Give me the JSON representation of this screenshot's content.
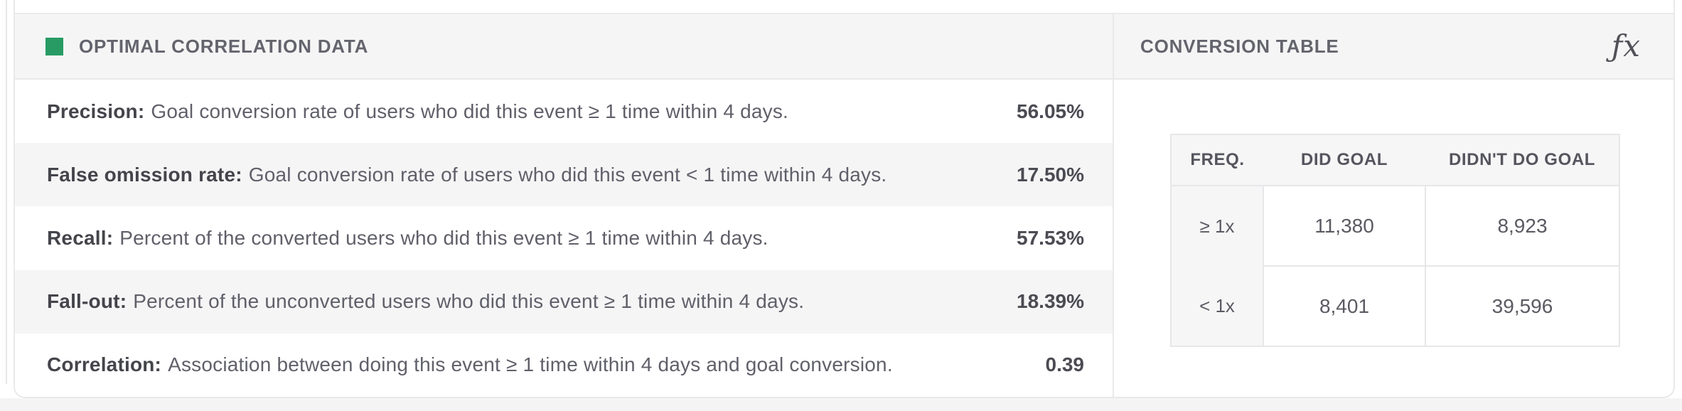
{
  "left_panel": {
    "title": "OPTIMAL CORRELATION DATA",
    "legend_color": "#279b63",
    "rows": [
      {
        "label": "Precision:",
        "description": "Goal conversion rate of users who did this event ≥ 1 time within 4 days.",
        "value": "56.05%"
      },
      {
        "label": "False omission rate:",
        "description": "Goal conversion rate of users who did this event < 1 time within 4 days.",
        "value": "17.50%"
      },
      {
        "label": "Recall:",
        "description": "Percent of the converted users who did this event ≥ 1 time within 4 days.",
        "value": "57.53%"
      },
      {
        "label": "Fall-out:",
        "description": "Percent of the unconverted users who did this event ≥ 1 time within 4 days.",
        "value": "18.39%"
      },
      {
        "label": "Correlation:",
        "description": "Association between doing this event ≥ 1 time within 4 days and goal conversion.",
        "value": "0.39"
      }
    ]
  },
  "right_panel": {
    "title": "CONVERSION TABLE",
    "fx_icon_glyph": "ƒx",
    "table": {
      "headers": [
        "FREQ.",
        "DID GOAL",
        "DIDN'T DO GOAL"
      ],
      "rows": [
        [
          "≥ 1x",
          "11,380",
          "8,923"
        ],
        [
          "< 1x",
          "8,401",
          "39,596"
        ]
      ]
    }
  },
  "colors": {
    "accent_green": "#279b63",
    "band_background": "#f5f5f6",
    "page_band": "#f4f4f5",
    "border": "#e9e9ea"
  }
}
